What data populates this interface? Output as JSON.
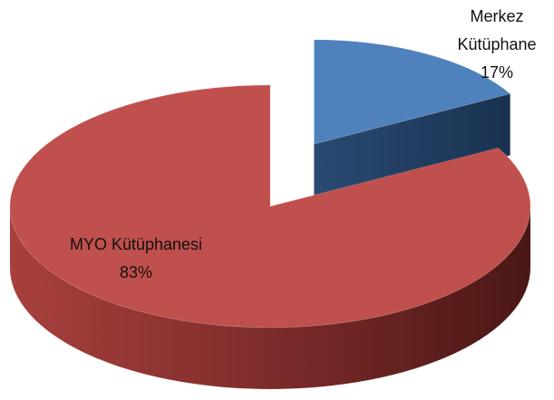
{
  "chart_data": {
    "type": "pie",
    "categories": [
      "Merkez Kütüphane",
      "MYO Kütüphanesi"
    ],
    "values": [
      17,
      83
    ],
    "value_labels": [
      "17%",
      "83%"
    ],
    "colors": [
      "#4f81bd",
      "#c0504d"
    ]
  }
}
